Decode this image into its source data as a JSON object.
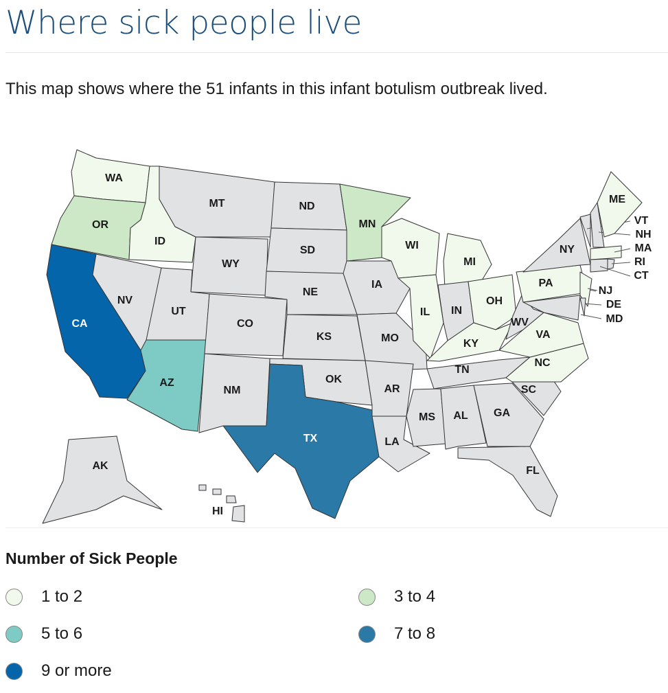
{
  "header": {
    "title": "Where sick people live",
    "description": "This map shows where the 51 infants in this infant botulism outbreak lived."
  },
  "map": {
    "states": [
      {
        "abbr": "WA",
        "fill": "#f1f8ec"
      },
      {
        "abbr": "OR",
        "fill": "#cce8c6"
      },
      {
        "abbr": "CA",
        "fill": "#0565ab"
      },
      {
        "abbr": "ID",
        "fill": "#f1f8ec"
      },
      {
        "abbr": "NV",
        "fill": "#e1e2e4"
      },
      {
        "abbr": "MT",
        "fill": "#e1e2e4"
      },
      {
        "abbr": "WY",
        "fill": "#e1e2e4"
      },
      {
        "abbr": "UT",
        "fill": "#e1e2e4"
      },
      {
        "abbr": "AZ",
        "fill": "#7dcbc4"
      },
      {
        "abbr": "CO",
        "fill": "#e1e2e4"
      },
      {
        "abbr": "NM",
        "fill": "#e1e2e4"
      },
      {
        "abbr": "ND",
        "fill": "#e1e2e4"
      },
      {
        "abbr": "SD",
        "fill": "#e1e2e4"
      },
      {
        "abbr": "NE",
        "fill": "#e1e2e4"
      },
      {
        "abbr": "KS",
        "fill": "#e1e2e4"
      },
      {
        "abbr": "OK",
        "fill": "#e1e2e4"
      },
      {
        "abbr": "TX",
        "fill": "#2a79a7"
      },
      {
        "abbr": "MN",
        "fill": "#cce8c6"
      },
      {
        "abbr": "IA",
        "fill": "#e1e2e4"
      },
      {
        "abbr": "MO",
        "fill": "#e1e2e4"
      },
      {
        "abbr": "AR",
        "fill": "#e1e2e4"
      },
      {
        "abbr": "LA",
        "fill": "#e1e2e4"
      },
      {
        "abbr": "WI",
        "fill": "#f1f8ec"
      },
      {
        "abbr": "MI",
        "fill": "#f1f8ec"
      },
      {
        "abbr": "IL",
        "fill": "#f1f8ec"
      },
      {
        "abbr": "IN",
        "fill": "#e1e2e4"
      },
      {
        "abbr": "OH",
        "fill": "#f1f8ec"
      },
      {
        "abbr": "KY",
        "fill": "#f1f8ec"
      },
      {
        "abbr": "TN",
        "fill": "#e1e2e4"
      },
      {
        "abbr": "MS",
        "fill": "#e1e2e4"
      },
      {
        "abbr": "AL",
        "fill": "#e1e2e4"
      },
      {
        "abbr": "GA",
        "fill": "#e1e2e4"
      },
      {
        "abbr": "FL",
        "fill": "#e1e2e4"
      },
      {
        "abbr": "SC",
        "fill": "#e1e2e4"
      },
      {
        "abbr": "NC",
        "fill": "#f1f8ec"
      },
      {
        "abbr": "VA",
        "fill": "#f1f8ec"
      },
      {
        "abbr": "WV",
        "fill": "#e1e2e4"
      },
      {
        "abbr": "PA",
        "fill": "#f1f8ec"
      },
      {
        "abbr": "NY",
        "fill": "#e1e2e4"
      },
      {
        "abbr": "NJ",
        "fill": "#f1f8ec"
      },
      {
        "abbr": "DE",
        "fill": "#e1e2e4"
      },
      {
        "abbr": "MD",
        "fill": "#e1e2e4"
      },
      {
        "abbr": "VT",
        "fill": "#e1e2e4"
      },
      {
        "abbr": "NH",
        "fill": "#e1e2e4"
      },
      {
        "abbr": "ME",
        "fill": "#f1f8ec"
      },
      {
        "abbr": "MA",
        "fill": "#f1f8ec"
      },
      {
        "abbr": "CT",
        "fill": "#e1e2e4"
      },
      {
        "abbr": "RI",
        "fill": "#e1e2e4"
      },
      {
        "abbr": "AK",
        "fill": "#e1e2e4"
      },
      {
        "abbr": "HI",
        "fill": "#e1e2e4"
      }
    ]
  },
  "legend": {
    "title": "Number of Sick People",
    "items": [
      {
        "label": "1 to 2",
        "color": "#f1f8ec"
      },
      {
        "label": "3 to 4",
        "color": "#cce8c6"
      },
      {
        "label": "5 to 6",
        "color": "#7dcbc4"
      },
      {
        "label": "7 to 8",
        "color": "#2a79a7"
      },
      {
        "label": "9 or more",
        "color": "#0565ab"
      }
    ]
  }
}
